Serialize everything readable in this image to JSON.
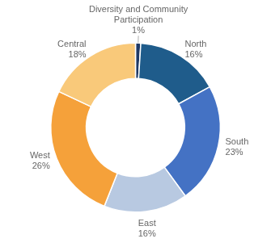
{
  "chart_data": {
    "type": "doughnut",
    "categories": [
      "Diversity and Community\nParticipation",
      "North",
      "South",
      "East",
      "West",
      "Central"
    ],
    "values": [
      1,
      16,
      23,
      16,
      26,
      18
    ],
    "value_labels": [
      "1%",
      "16%",
      "23%",
      "16%",
      "26%",
      "18%"
    ],
    "colors": [
      "#1F3864",
      "#1F5C8B",
      "#4472C4",
      "#B8C9E1",
      "#F5A13A",
      "#F9C97A"
    ],
    "data_labels": true
  }
}
